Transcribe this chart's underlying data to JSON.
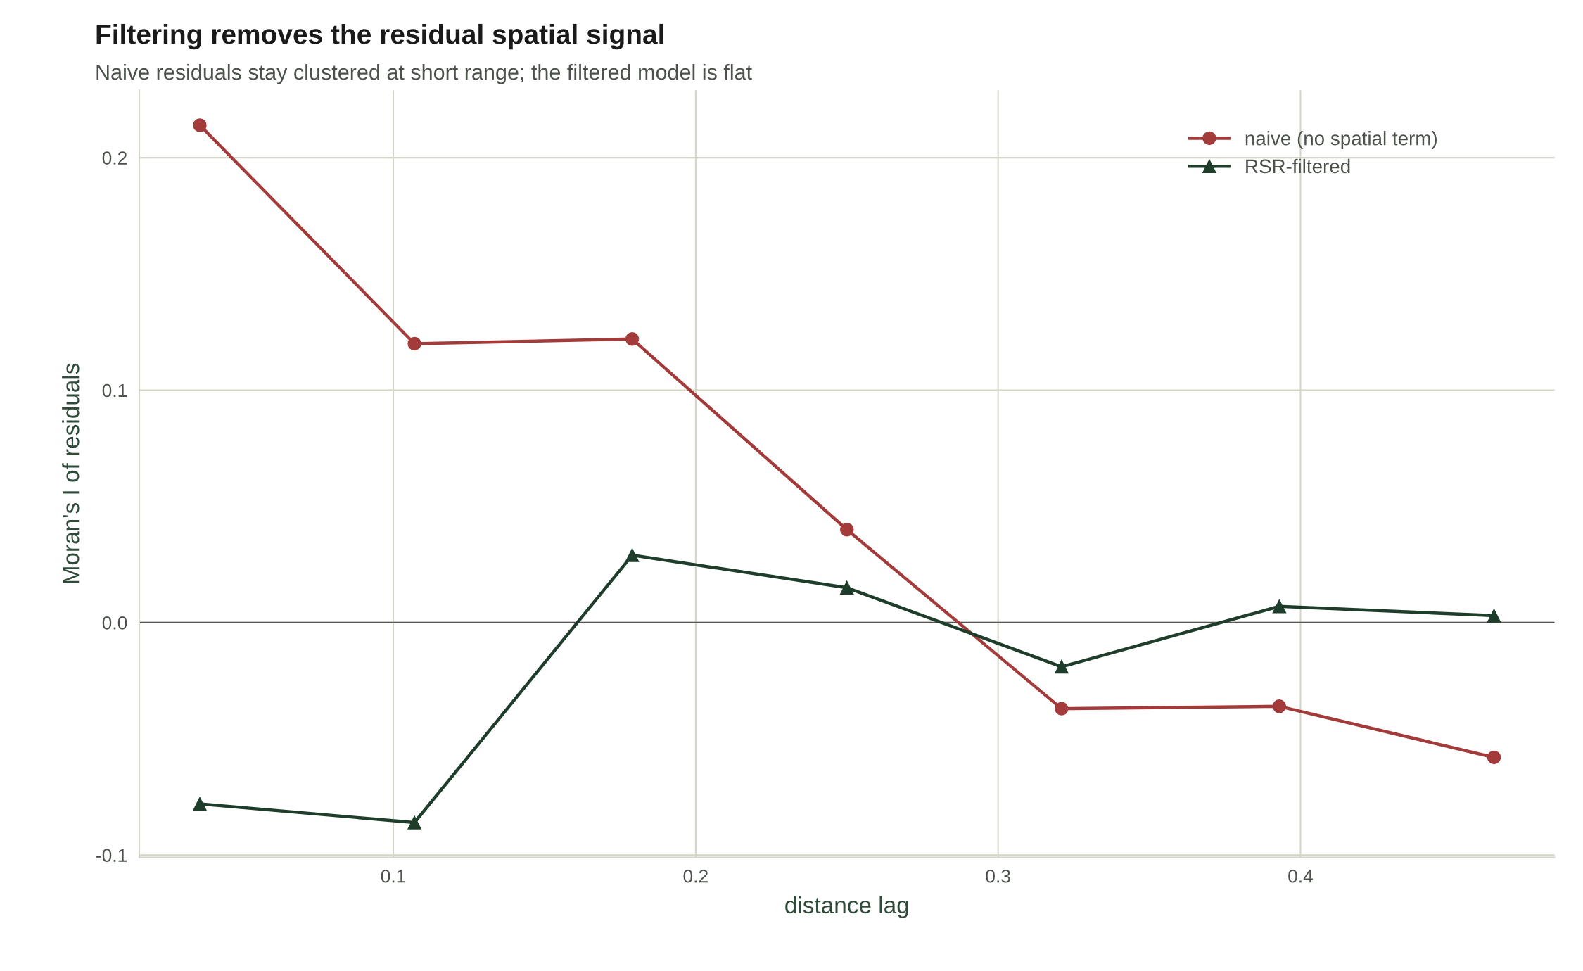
{
  "chart_data": {
    "type": "line",
    "title": "Filtering removes the residual spatial signal",
    "subtitle": "Naive residuals stay clustered at short range; the filtered model is flat",
    "xlabel": "distance lag",
    "ylabel": "Moran's I of residuals",
    "x": [
      0.036,
      0.107,
      0.179,
      0.25,
      0.321,
      0.393,
      0.464
    ],
    "series": [
      {
        "name": "naive (no spatial term)",
        "color": "#a33b3b",
        "marker": "circle",
        "values": [
          0.214,
          0.12,
          0.122,
          0.04,
          -0.037,
          -0.036,
          -0.058
        ]
      },
      {
        "name": "RSR-filtered",
        "color": "#1f3d2b",
        "marker": "triangle",
        "values": [
          -0.078,
          -0.086,
          0.029,
          0.015,
          -0.019,
          0.007,
          0.003
        ]
      }
    ],
    "xlim": [
      0.016,
      0.484
    ],
    "ylim": [
      -0.101,
      0.229
    ],
    "xticks": [
      0.1,
      0.2,
      0.3,
      0.4
    ],
    "yticks": [
      {
        "value": -0.1,
        "label": "-0.1"
      },
      {
        "value": 0,
        "label": "0.0"
      },
      0.1,
      0.2
    ],
    "ref_lines": [
      {
        "axis": "y",
        "value": 0,
        "color": "#555555"
      }
    ],
    "grid": true,
    "legend": "top right",
    "line_style": "solid"
  }
}
